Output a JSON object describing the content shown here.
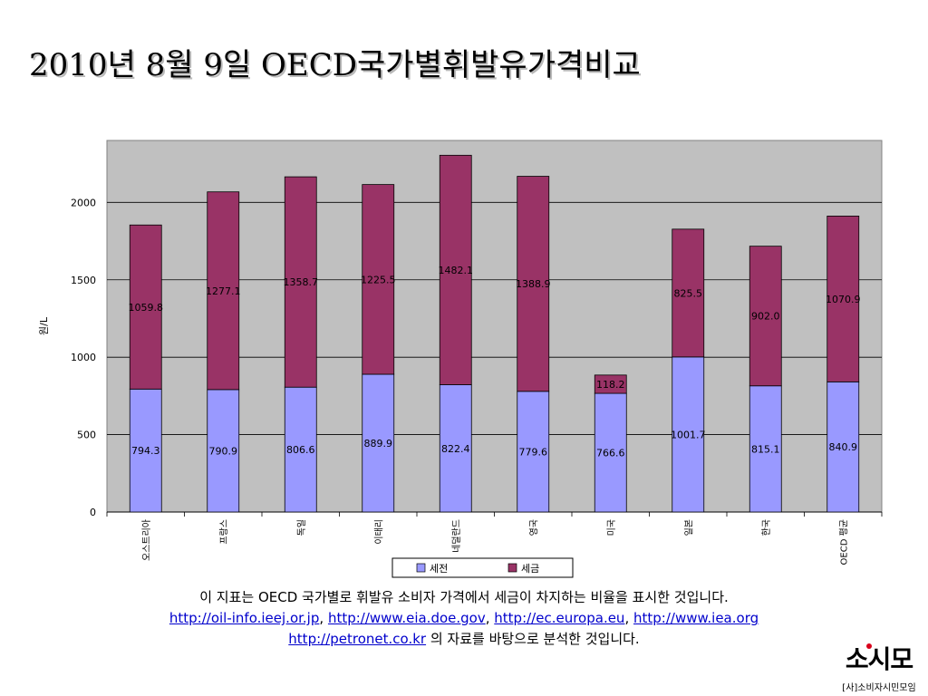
{
  "page": {
    "title": "2010년 8월 9일 OECD국가별휘발유가격비교"
  },
  "chart_data": {
    "type": "bar",
    "stacked": true,
    "categories": [
      "오스트리아",
      "프랑스",
      "독일",
      "이태리",
      "네덜란드",
      "영국",
      "미국",
      "일본",
      "한국",
      "OECD 평균"
    ],
    "series": [
      {
        "name": "세전",
        "color": "#9999ff",
        "values": [
          794.3,
          790.9,
          806.6,
          889.9,
          822.4,
          779.6,
          766.6,
          1001.7,
          815.1,
          840.9
        ]
      },
      {
        "name": "세금",
        "color": "#993366",
        "values": [
          1059.8,
          1277.1,
          1358.7,
          1225.5,
          1482.1,
          1388.9,
          118.2,
          825.5,
          902.0,
          1070.9
        ]
      }
    ],
    "value_labels": {
      "세전": [
        "794.3",
        "790.9",
        "806.6",
        "889.9",
        "822.4",
        "779.6",
        "766.6",
        "1001.7",
        "815.1",
        "840.9"
      ],
      "세금": [
        "1059.8",
        "1277.1",
        "1358.7",
        "1225.5",
        "1482.1",
        "1388.9",
        "118.2",
        "825.5",
        "902.0",
        "1070.9"
      ]
    },
    "ylabel": "원/L",
    "ylim": [
      0,
      2400
    ],
    "yticks": [
      0,
      500,
      1000,
      1500,
      2000
    ],
    "grid": true,
    "plot_background": "#c0c0c0",
    "legend_position": "bottom"
  },
  "caption": {
    "line1": "이 지표는 OECD 국가별로 휘발유 소비자 가격에서 세금이 차지하는 비율을 표시한 것입니다.",
    "links": [
      "http://oil-info.ieej.or.jp",
      "http://www.eia.doe.gov",
      "http://ec.europa.eu",
      "http://www.iea.org",
      "http://petronet.co.kr"
    ],
    "separator": ",",
    "line3_suffix": "의 자료를 바탕으로 분석한 것입니다."
  },
  "logo": {
    "mark": "소시모",
    "subtitle": "[사]소비자시민모임"
  }
}
